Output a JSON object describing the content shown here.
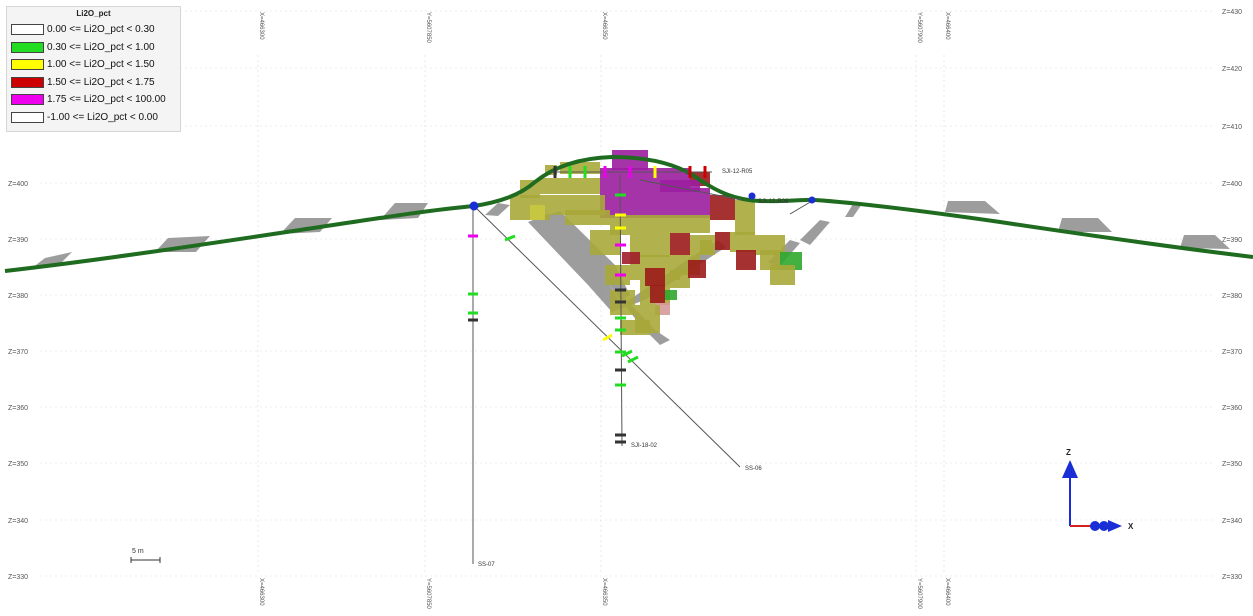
{
  "legend": {
    "title": "Li2O_pct",
    "items": [
      {
        "label": "0.00 <= Li2O_pct < 0.30",
        "color": "#ffffff"
      },
      {
        "label": "0.30 <= Li2O_pct < 1.00",
        "color": "#22dd22"
      },
      {
        "label": "1.00 <= Li2O_pct < 1.50",
        "color": "#ffff00"
      },
      {
        "label": "1.50 <= Li2O_pct < 1.75",
        "color": "#cc0000"
      },
      {
        "label": "1.75 <= Li2O_pct < 100.00",
        "color": "#ee00ee"
      },
      {
        "label": "-1.00 <= Li2O_pct < 0.00",
        "color": "#ffffff"
      }
    ]
  },
  "elevation_labels": [
    "Z=430",
    "Z=420",
    "Z=410",
    "Z=400",
    "Z=390",
    "Z=380",
    "Z=370",
    "Z=360",
    "Z=350",
    "Z=340",
    "Z=330"
  ],
  "grid_labels": [
    "X=466300",
    "Y=5607850",
    "X=466350",
    "Y=5607900",
    "X=466400"
  ],
  "drillholes": [
    {
      "id": "SJI-12-R05"
    },
    {
      "id": "SJI-12-R06"
    },
    {
      "id": "SJI-18-02"
    },
    {
      "id": "SS-06"
    },
    {
      "id": "SS-07"
    }
  ],
  "scale_bar": {
    "label": "5 m"
  },
  "axes_indicator": {
    "z_label": "Z",
    "x_label": "X"
  },
  "colors": {
    "topography": "#1f6b1f",
    "block_olive": "#a8a83a",
    "block_purple": "#9b1ea0",
    "block_red": "#9b1b1b",
    "wireframe_gray": "#8c8c8c",
    "axis_red": "#d42020",
    "axis_blue": "#1a2ed6"
  }
}
